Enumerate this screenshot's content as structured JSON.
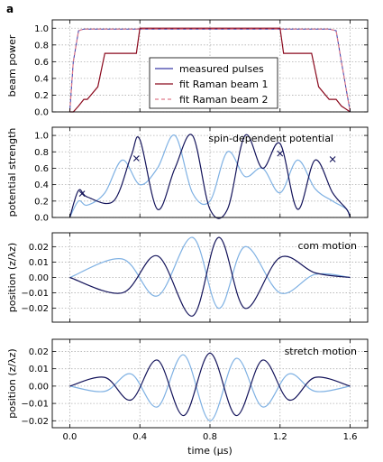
{
  "figure": {
    "panel_label": "a",
    "xlabel": "time (μs)",
    "x_ticks": [
      "0.0",
      "0.4",
      "0.8",
      "1.2",
      "1.6"
    ]
  },
  "colors": {
    "measured": "#3a3aa8",
    "raman1": "#8b0a1e",
    "raman2": "#e07b8a",
    "dark": "#13135a",
    "light": "#7fb1e3"
  },
  "chart_data": [
    {
      "type": "line",
      "ylabel": "beam power",
      "ylim": [
        0,
        1.1
      ],
      "xlim": [
        -0.1,
        1.7
      ],
      "y_ticks": [
        "0.0",
        "0.2",
        "0.4",
        "0.6",
        "0.8",
        "1.0"
      ],
      "grid": true,
      "legend_position": "center",
      "series": [
        {
          "name": "measured pulses",
          "x": [
            0,
            0.02,
            0.05,
            0.08,
            1.48,
            1.52,
            1.55,
            1.6
          ],
          "y": [
            0,
            0.6,
            0.97,
            0.99,
            0.99,
            0.97,
            0.6,
            0
          ]
        },
        {
          "name": "fit Raman beam 1",
          "x": [
            0,
            0.02,
            0.05,
            0.08,
            0.1,
            0.16,
            0.2,
            0.38,
            0.4,
            1.2,
            1.22,
            1.38,
            1.42,
            1.48,
            1.52,
            1.55,
            1.6
          ],
          "y": [
            0,
            0,
            0.07,
            0.15,
            0.15,
            0.3,
            0.7,
            0.7,
            1.0,
            1.0,
            0.7,
            0.7,
            0.3,
            0.15,
            0.15,
            0.07,
            0
          ]
        },
        {
          "name": "fit Raman beam 2",
          "x": [
            0,
            0.02,
            0.05,
            0.08,
            1.48,
            1.52,
            1.55,
            1.6
          ],
          "y": [
            0,
            0.6,
            0.97,
            0.99,
            0.99,
            0.97,
            0.6,
            0
          ]
        }
      ]
    },
    {
      "type": "line",
      "ylabel": "potential strength",
      "annotation": "spin-dependent potential",
      "ylim": [
        0,
        1.1
      ],
      "xlim": [
        -0.1,
        1.7
      ],
      "y_ticks": [
        "0.0",
        "0.2",
        "0.4",
        "0.6",
        "0.8",
        "1.0"
      ],
      "grid": true,
      "series": [
        {
          "x": [
            0.0,
            0.05,
            0.1,
            0.25,
            0.35,
            0.4,
            0.5,
            0.6,
            0.7,
            0.8,
            0.9,
            1.0,
            1.1,
            1.2,
            1.3,
            1.4,
            1.5,
            1.58,
            1.6
          ],
          "y": [
            0,
            0.33,
            0.25,
            0.2,
            0.75,
            0.95,
            0.1,
            0.6,
            1.0,
            0.1,
            0.1,
            1.0,
            0.6,
            0.9,
            0.1,
            0.7,
            0.3,
            0.1,
            0
          ]
        },
        {
          "x": [
            0.0,
            0.05,
            0.1,
            0.2,
            0.3,
            0.4,
            0.5,
            0.6,
            0.7,
            0.8,
            0.9,
            1.0,
            1.1,
            1.2,
            1.3,
            1.4,
            1.5,
            1.58,
            1.6
          ],
          "y": [
            0,
            0.2,
            0.15,
            0.3,
            0.7,
            0.4,
            0.6,
            1.0,
            0.3,
            0.2,
            0.8,
            0.5,
            0.6,
            0.3,
            0.7,
            0.35,
            0.2,
            0.1,
            0
          ]
        }
      ],
      "markers": [
        {
          "x": 0.07,
          "y": 0.29
        },
        {
          "x": 0.38,
          "y": 0.72
        },
        {
          "x": 1.2,
          "y": 0.78
        },
        {
          "x": 1.5,
          "y": 0.71
        }
      ]
    },
    {
      "type": "line",
      "ylabel": "position (z/λz)",
      "annotation": "com motion",
      "ylim": [
        -0.029,
        0.029
      ],
      "xlim": [
        -0.1,
        1.7
      ],
      "y_ticks": [
        "−0.02",
        "−0.01",
        "0.00",
        "0.01",
        "0.02"
      ],
      "grid": true,
      "series": [
        {
          "x": [
            0,
            0.3,
            0.5,
            0.7,
            0.85,
            1.0,
            1.2,
            1.4,
            1.6
          ],
          "y": [
            0,
            -0.01,
            0.014,
            -0.025,
            0.026,
            -0.02,
            0.013,
            0.003,
            0
          ]
        },
        {
          "x": [
            0,
            0.3,
            0.5,
            0.7,
            0.85,
            1.0,
            1.2,
            1.4,
            1.6
          ],
          "y": [
            0,
            0.012,
            -0.012,
            0.026,
            -0.02,
            0.02,
            -0.01,
            0.002,
            0
          ]
        }
      ]
    },
    {
      "type": "line",
      "ylabel": "position (z/λz)",
      "annotation": "stretch motion",
      "ylim": [
        -0.024,
        0.027
      ],
      "xlim": [
        -0.1,
        1.7
      ],
      "y_ticks": [
        "−0.02",
        "−0.01",
        "0.00",
        "0.01",
        "0.02"
      ],
      "grid": true,
      "series": [
        {
          "x": [
            0,
            0.2,
            0.35,
            0.5,
            0.65,
            0.8,
            0.95,
            1.1,
            1.25,
            1.4,
            1.6
          ],
          "y": [
            0,
            0.005,
            -0.008,
            0.015,
            -0.017,
            0.019,
            -0.017,
            0.015,
            -0.008,
            0.005,
            0
          ]
        },
        {
          "x": [
            0,
            0.2,
            0.35,
            0.5,
            0.65,
            0.8,
            0.95,
            1.1,
            1.25,
            1.4,
            1.6
          ],
          "y": [
            0,
            -0.003,
            0.007,
            -0.012,
            0.018,
            -0.02,
            0.016,
            -0.012,
            0.007,
            -0.003,
            0
          ]
        }
      ]
    }
  ]
}
